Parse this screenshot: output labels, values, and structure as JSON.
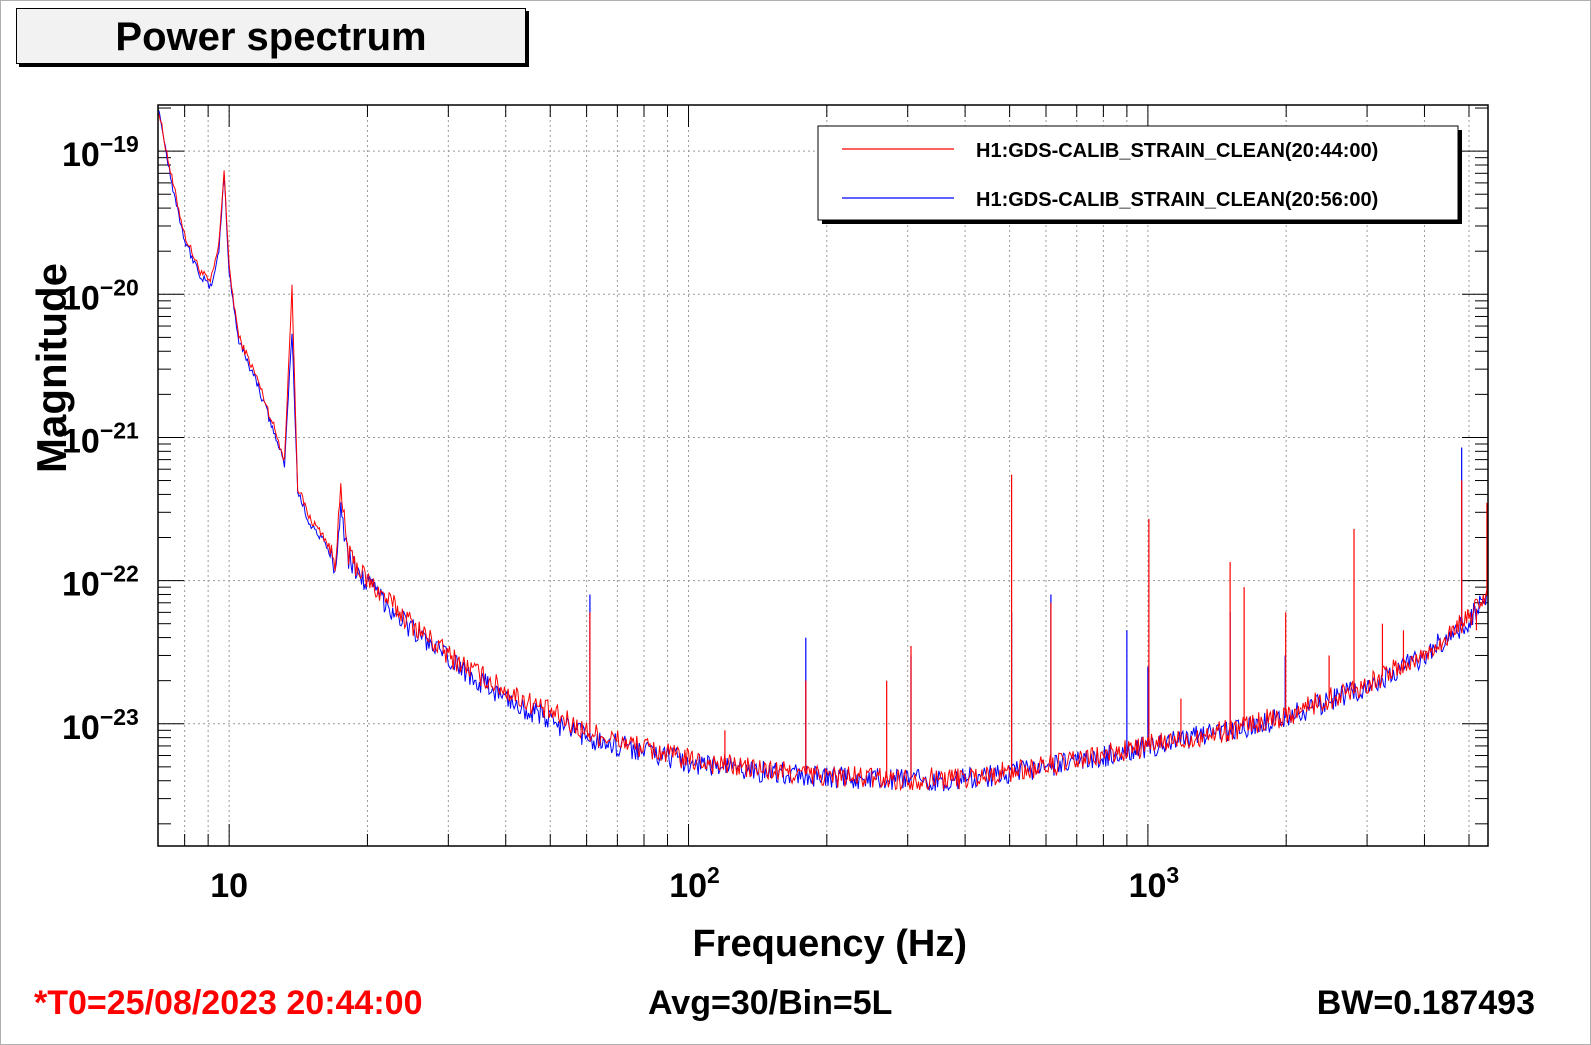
{
  "chart_data": {
    "type": "line",
    "title": "Power spectrum",
    "xlabel": "Frequency (Hz)",
    "ylabel": "Magnitude",
    "x_scale": "log",
    "y_scale": "log",
    "xlim": [
      7,
      5500
    ],
    "ylim": [
      1.4e-24,
      2.1e-19
    ],
    "x_ticks": [
      {
        "value": 10,
        "base": "10",
        "exp": ""
      },
      {
        "value": 100,
        "base": "10",
        "exp": "2"
      },
      {
        "value": 1000,
        "base": "10",
        "exp": "3"
      }
    ],
    "y_ticks": [
      {
        "value": 1e-19,
        "base": "10",
        "exp": "−19"
      },
      {
        "value": 1e-20,
        "base": "10",
        "exp": "−20"
      },
      {
        "value": 1e-21,
        "base": "10",
        "exp": "−21"
      },
      {
        "value": 1e-22,
        "base": "10",
        "exp": "−22"
      },
      {
        "value": 1e-23,
        "base": "10",
        "exp": "−23"
      }
    ],
    "grid": true,
    "legend_position": "top-right",
    "series": [
      {
        "name": "H1:GDS-CALIB_STRAIN_CLEAN(20:44:00)",
        "color": "#ff0000",
        "points": [
          [
            7,
            2e-19
          ],
          [
            7.5,
            6.5e-20
          ],
          [
            8,
            2.6e-20
          ],
          [
            8.6,
            1.5e-20
          ],
          [
            9.1,
            1.2e-20
          ],
          [
            9.5,
            2.2e-20
          ],
          [
            9.75,
            7.5e-20
          ],
          [
            10,
            1.5e-20
          ],
          [
            10.5,
            5e-21
          ],
          [
            11.5,
            2.6e-21
          ],
          [
            12.5,
            1.2e-21
          ],
          [
            13.2,
            7e-22
          ],
          [
            13.7,
            1.1e-20
          ],
          [
            14.1,
            4.5e-22
          ],
          [
            15,
            2.7e-22
          ],
          [
            16,
            2.1e-22
          ],
          [
            17,
            1.4e-22
          ],
          [
            17.5,
            4e-22
          ],
          [
            18.2,
            1.5e-22
          ],
          [
            20,
            1e-22
          ],
          [
            25,
            5e-23
          ],
          [
            30,
            3e-23
          ],
          [
            40,
            1.7e-23
          ],
          [
            50,
            1.2e-23
          ],
          [
            60,
            8.8e-24
          ],
          [
            80,
            6.8e-24
          ],
          [
            100,
            5.6e-24
          ],
          [
            150,
            4.7e-24
          ],
          [
            200,
            4.3e-24
          ],
          [
            300,
            4.1e-24
          ],
          [
            400,
            4.2e-24
          ],
          [
            500,
            4.6e-24
          ],
          [
            700,
            5.5e-24
          ],
          [
            1000,
            7e-24
          ],
          [
            1500,
            9e-24
          ],
          [
            2000,
            1.15e-23
          ],
          [
            3000,
            1.9e-23
          ],
          [
            4000,
            3e-23
          ],
          [
            5000,
            5.5e-23
          ],
          [
            5500,
            8e-23
          ]
        ],
        "lines": [
          [
            61,
            6e-23
          ],
          [
            120,
            9e-24
          ],
          [
            180,
            2e-23
          ],
          [
            270,
            2e-23
          ],
          [
            305,
            3.5e-23
          ],
          [
            505,
            5.5e-22
          ],
          [
            615,
            7e-23
          ],
          [
            1005,
            2.7e-22
          ],
          [
            1180,
            1.5e-23
          ],
          [
            1510,
            1.35e-22
          ],
          [
            1620,
            9e-23
          ],
          [
            1995,
            6e-23
          ],
          [
            2150,
            1.3e-23
          ],
          [
            2480,
            3e-23
          ],
          [
            2810,
            2.3e-22
          ],
          [
            3240,
            5e-23
          ],
          [
            3600,
            4.5e-23
          ],
          [
            4820,
            5e-22
          ],
          [
            5190,
            4.5e-23
          ],
          [
            5470,
            3.5e-22
          ]
        ]
      },
      {
        "name": "H1:GDS-CALIB_STRAIN_CLEAN(20:56:00)",
        "color": "#0000ff",
        "points": [
          [
            7,
            2.1e-19
          ],
          [
            7.5,
            6e-20
          ],
          [
            8,
            2.4e-20
          ],
          [
            8.6,
            1.4e-20
          ],
          [
            9.1,
            1.1e-20
          ],
          [
            9.5,
            2e-20
          ],
          [
            9.75,
            6.8e-20
          ],
          [
            10,
            1.4e-20
          ],
          [
            10.5,
            4.7e-21
          ],
          [
            11.5,
            2.4e-21
          ],
          [
            12.5,
            1.1e-21
          ],
          [
            13.2,
            6.5e-22
          ],
          [
            13.7,
            5.5e-21
          ],
          [
            14.1,
            4.2e-22
          ],
          [
            15,
            2.5e-22
          ],
          [
            16,
            1.9e-22
          ],
          [
            17,
            1.3e-22
          ],
          [
            17.5,
            3.2e-22
          ],
          [
            18.2,
            1.4e-22
          ],
          [
            20,
            9.5e-23
          ],
          [
            25,
            4.6e-23
          ],
          [
            30,
            2.8e-23
          ],
          [
            40,
            1.5e-23
          ],
          [
            50,
            1.05e-23
          ],
          [
            60,
            8e-24
          ],
          [
            80,
            6.5e-24
          ],
          [
            100,
            5.4e-24
          ],
          [
            150,
            4.6e-24
          ],
          [
            200,
            4.2e-24
          ],
          [
            300,
            4e-24
          ],
          [
            400,
            4.1e-24
          ],
          [
            500,
            4.5e-24
          ],
          [
            700,
            5.4e-24
          ],
          [
            1000,
            6.9e-24
          ],
          [
            1500,
            8.9e-24
          ],
          [
            2000,
            1.1e-23
          ],
          [
            3000,
            1.85e-23
          ],
          [
            4000,
            3e-23
          ],
          [
            5000,
            5.3e-23
          ],
          [
            5500,
            7.8e-23
          ]
        ],
        "lines": [
          [
            61,
            8e-23
          ],
          [
            180,
            4e-23
          ],
          [
            305,
            3e-23
          ],
          [
            505,
            6e-23
          ],
          [
            615,
            8e-23
          ],
          [
            900,
            4.5e-23
          ],
          [
            1000,
            2.5e-23
          ],
          [
            1510,
            6e-23
          ],
          [
            1990,
            3e-23
          ],
          [
            4820,
            8.5e-22
          ]
        ]
      }
    ]
  },
  "footer": {
    "t0": "*T0=25/08/2023 20:44:00",
    "avg": "Avg=30/Bin=5L",
    "bw": "BW=0.187493"
  },
  "colors": {
    "t0_text": "#ff0000",
    "title_box_fill": "#f2f2f2"
  }
}
